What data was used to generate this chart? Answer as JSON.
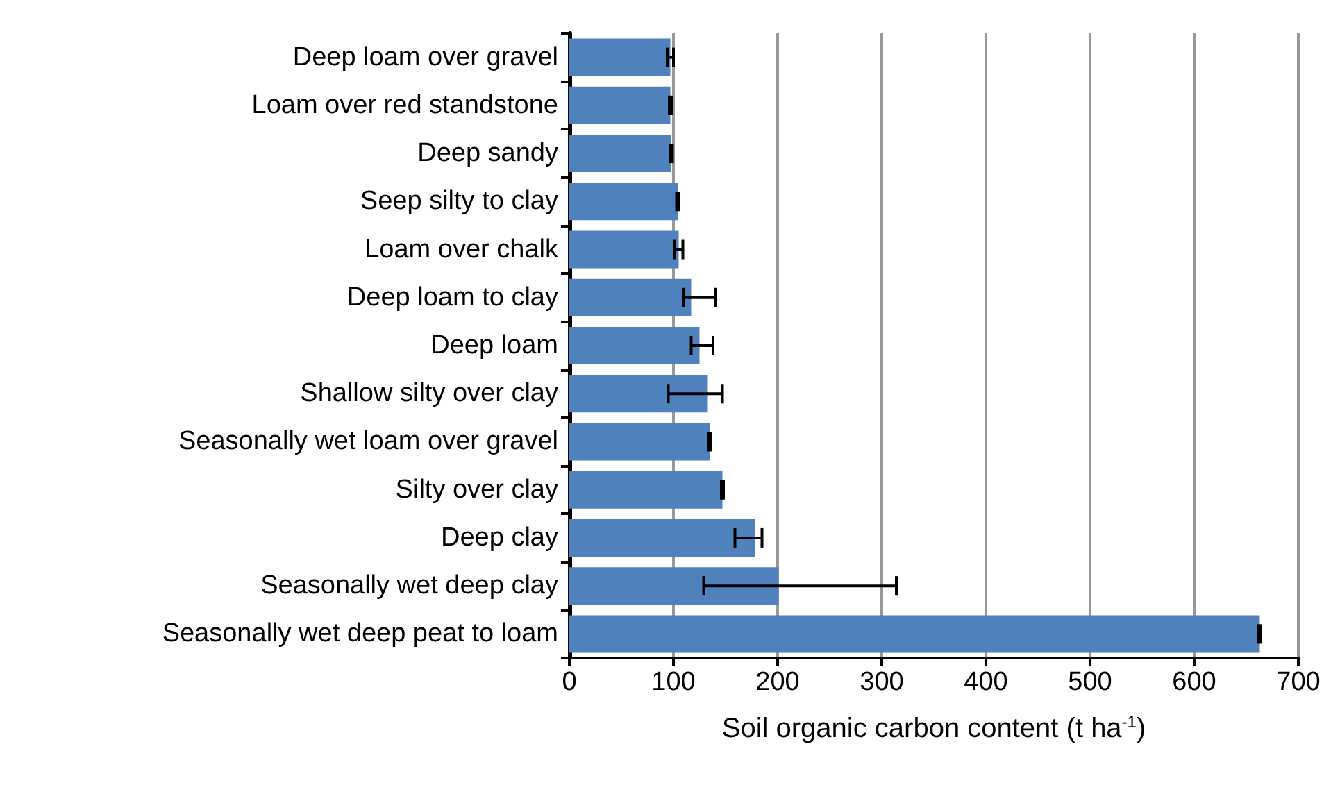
{
  "chart_data": {
    "type": "bar",
    "orientation": "horizontal",
    "xlabel": "Soil organic carbon content (t ha$^{-1}$)",
    "categories": [
      "Deep loam over gravel",
      "Loam over red standstone",
      "Deep sandy",
      "Seep silty to clay",
      "Loam over chalk",
      "Deep loam to clay",
      "Deep loam",
      "Shallow silty over clay",
      "Seasonally wet loam over gravel",
      "Silty over clay",
      "Deep clay",
      "Seasonally wet deep clay",
      "Seasonally wet deep peat to loam"
    ],
    "values": [
      97,
      97,
      98,
      104,
      105,
      117,
      125,
      133,
      135,
      147,
      178,
      201,
      663
    ],
    "errors": [
      3,
      1,
      1,
      1,
      4,
      [
        110,
        140
      ],
      [
        117,
        138
      ],
      [
        95,
        147
      ],
      1,
      1,
      [
        159,
        185
      ],
      [
        129,
        314
      ],
      1
    ],
    "color": "#4f81bd",
    "xlim": [
      0,
      700
    ],
    "xticks": [
      0,
      100,
      200,
      300,
      400,
      500,
      600,
      700
    ],
    "grid": "x"
  }
}
